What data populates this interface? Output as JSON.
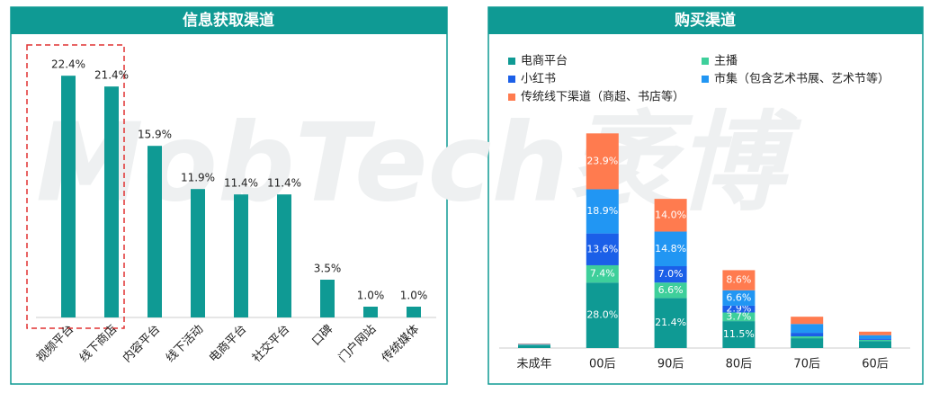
{
  "watermark": "MobTech袤博",
  "chart_data": [
    {
      "type": "bar",
      "title": "信息获取渠道",
      "categories": [
        "视频平台",
        "线下商店",
        "内容平台",
        "线下活动",
        "电商平台",
        "社交平台",
        "口碑",
        "门户网站",
        "传统媒体"
      ],
      "values": [
        22.4,
        21.4,
        15.9,
        11.9,
        11.4,
        11.4,
        3.5,
        1.0,
        1.0
      ],
      "value_labels": [
        "22.4%",
        "21.4%",
        "15.9%",
        "11.9%",
        "11.4%",
        "11.4%",
        "3.5%",
        "1.0%",
        "1.0%"
      ],
      "color": "#0f9a94"
    },
    {
      "type": "stacked_bar",
      "title": "购买渠道",
      "categories": [
        "未成年",
        "00后",
        "90后",
        "80后",
        "70后",
        "60后"
      ],
      "series": [
        {
          "name": "电商平台",
          "color": "#0f9a94",
          "values": [
            1.2,
            28.0,
            21.4,
            11.5,
            4.2,
            3.0
          ],
          "value_labels": [
            null,
            "28.0%",
            "21.4%",
            "11.5%",
            null,
            null
          ]
        },
        {
          "name": "主播",
          "color": "#3ecf9b",
          "values": [
            0.2,
            7.4,
            6.6,
            3.7,
            0.8,
            0.5
          ],
          "value_labels": [
            null,
            "7.4%",
            "6.6%",
            "3.7%",
            null,
            null
          ]
        },
        {
          "name": "小红书",
          "color": "#1b5fe8",
          "values": [
            0.1,
            13.6,
            7.0,
            2.9,
            1.5,
            0.5
          ],
          "value_labels": [
            null,
            "13.6%",
            "7.0%",
            "2.9%",
            null,
            null
          ]
        },
        {
          "name": "市集（包含艺术书展、艺术节等）",
          "color": "#2196f3",
          "values": [
            0.2,
            18.9,
            14.8,
            6.6,
            3.8,
            1.5
          ],
          "value_labels": [
            null,
            "18.9%",
            "14.8%",
            "6.6%",
            null,
            null
          ]
        },
        {
          "name": "传统线下渠道（商超、书店等）",
          "color": "#ff7b4f",
          "values": [
            0.2,
            23.9,
            14.0,
            8.6,
            3.1,
            1.5
          ],
          "value_labels": [
            null,
            "23.9%",
            "14.0%",
            "8.6%",
            null,
            null
          ]
        }
      ]
    }
  ]
}
